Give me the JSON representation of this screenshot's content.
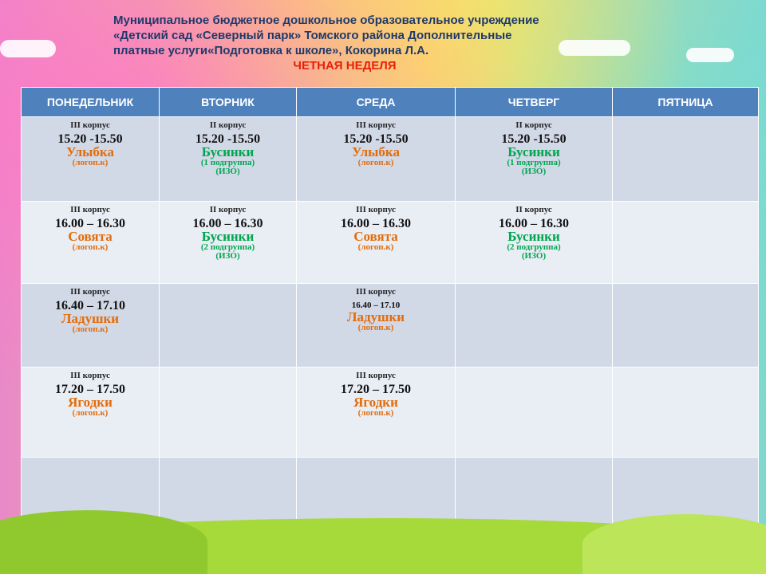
{
  "header": {
    "title_line1": "Муниципальное бюджетное дошкольное образовательное учреждение",
    "title_line2": "«Детский сад «Северный парк» Томского района Дополнительные",
    "title_line3": "платные услуги«Подготовка к школе», Кокорина Л.А.",
    "subtitle": "ЧЕТНАЯ НЕДЕЛЯ"
  },
  "days": [
    "ПОНЕДЕЛЬНИК",
    "ВТОРНИК",
    "СРЕДА",
    "ЧЕТВЕРГ",
    "ПЯТНИЦА"
  ],
  "rows": [
    [
      {
        "building": "III корпус",
        "time": "15.20 -15.50",
        "group": "Улыбка",
        "note1": "(логоп.к)",
        "note2": ""
      },
      {
        "building": "II корпус",
        "time": "15.20 -15.50",
        "group": "Бусинки",
        "note1": "(1 подгруппа)",
        "note2": "(ИЗО)"
      },
      {
        "building": "III корпус",
        "time": "15.20 -15.50",
        "group": "Улыбка",
        "note1": "(логоп.к)",
        "note2": ""
      },
      {
        "building": "II корпус",
        "time": "15.20 -15.50",
        "group": "Бусинки",
        "note1": "(1 подгруппа)",
        "note2": "(ИЗО)"
      },
      null
    ],
    [
      {
        "building": "III корпус",
        "time": "16.00 – 16.30",
        "group": "Совята",
        "note1": "(логоп.к)",
        "note2": ""
      },
      {
        "building": "II корпус",
        "time": "16.00 – 16.30",
        "group": "Бусинки",
        "note1": "(2 подгруппа)",
        "note2": "(ИЗО)"
      },
      {
        "building": "III корпус",
        "time": "16.00 – 16.30",
        "group": "Совята",
        "note1": "(логоп.к)",
        "note2": ""
      },
      {
        "building": "II корпус",
        "time": "16.00 – 16.30",
        "group": "Бусинки",
        "note1": "(2 подгруппа)",
        "note2": "(ИЗО)"
      },
      null
    ],
    [
      {
        "building": "III корпус",
        "time": "16.40 – 17.10",
        "group": "Ладушки",
        "note1": "(логоп.к)",
        "note2": ""
      },
      null,
      {
        "building": "III корпус",
        "time": "16.40 – 17.10",
        "group": "Ладушки",
        "note1": "(логоп.к)",
        "note2": ""
      },
      null,
      null
    ],
    [
      {
        "building": "III корпус",
        "time": "17.20 – 17.50",
        "group": "Ягодки",
        "note1": "(логоп.к)",
        "note2": ""
      },
      null,
      {
        "building": "III корпус",
        "time": "17.20 – 17.50",
        "group": "Ягодки",
        "note1": "(логоп.к)",
        "note2": ""
      },
      null,
      null
    ],
    [
      null,
      null,
      null,
      null,
      null
    ]
  ],
  "colors": {
    "header_text": "#1f3a6b",
    "subtitle": "#e8200a",
    "table_header_bg": "#4f81bd",
    "logoped_group": "#e36c0a",
    "art_group": "#00a650"
  }
}
